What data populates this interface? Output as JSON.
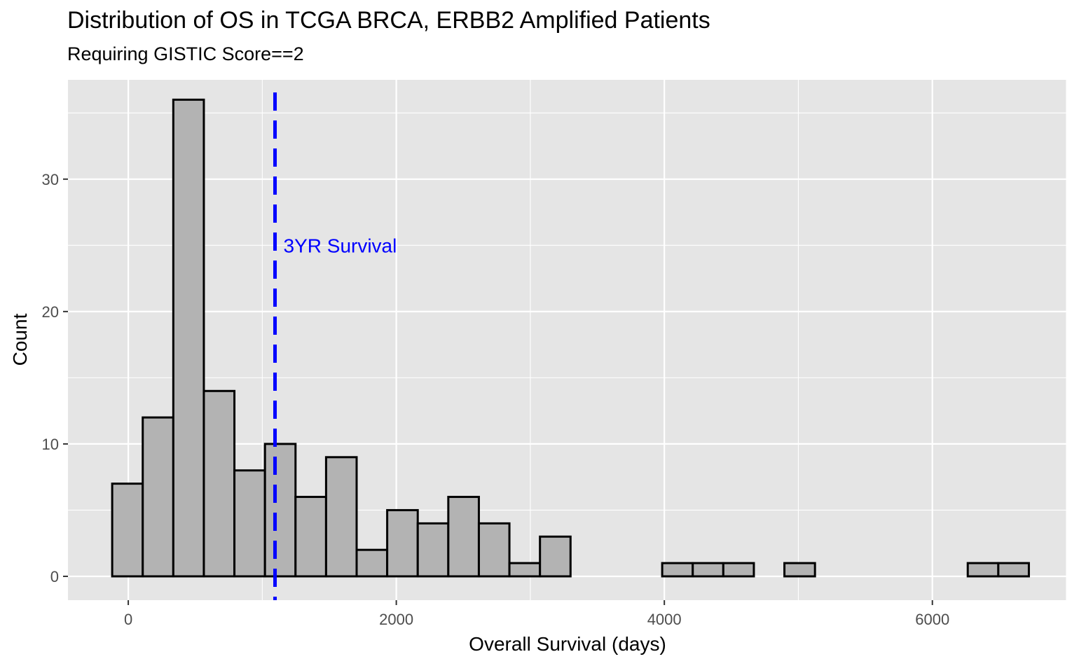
{
  "chart_data": {
    "type": "bar",
    "title": "Distribution of OS in TCGA BRCA, ERBB2 Amplified Patients",
    "subtitle": "Requiring GISTIC Score==2",
    "xlabel": "Overall Survival (days)",
    "ylabel": "Count",
    "xlim": [
      -450,
      7000
    ],
    "ylim": [
      -1.8,
      37.5
    ],
    "x_ticks": [
      0,
      2000,
      4000,
      6000
    ],
    "x_tick_labels": [
      "0",
      "2000",
      "4000",
      "6000"
    ],
    "y_ticks": [
      0,
      10,
      20,
      30
    ],
    "y_tick_labels": [
      "0",
      "10",
      "20",
      "30"
    ],
    "grid": true,
    "bin_width": 228,
    "bins": [
      {
        "x": -6,
        "count": 7
      },
      {
        "x": 222,
        "count": 12
      },
      {
        "x": 450,
        "count": 36
      },
      {
        "x": 678,
        "count": 14
      },
      {
        "x": 906,
        "count": 8
      },
      {
        "x": 1134,
        "count": 10
      },
      {
        "x": 1362,
        "count": 6
      },
      {
        "x": 1590,
        "count": 9
      },
      {
        "x": 1818,
        "count": 2
      },
      {
        "x": 2046,
        "count": 5
      },
      {
        "x": 2274,
        "count": 4
      },
      {
        "x": 2502,
        "count": 6
      },
      {
        "x": 2730,
        "count": 4
      },
      {
        "x": 2958,
        "count": 1
      },
      {
        "x": 3186,
        "count": 3
      },
      {
        "x": 3414,
        "count": 0
      },
      {
        "x": 3642,
        "count": 0
      },
      {
        "x": 3870,
        "count": 0
      },
      {
        "x": 4098,
        "count": 1
      },
      {
        "x": 4326,
        "count": 1
      },
      {
        "x": 4554,
        "count": 1
      },
      {
        "x": 4782,
        "count": 0
      },
      {
        "x": 5010,
        "count": 1
      },
      {
        "x": 5238,
        "count": 0
      },
      {
        "x": 5466,
        "count": 0
      },
      {
        "x": 5694,
        "count": 0
      },
      {
        "x": 5922,
        "count": 0
      },
      {
        "x": 6150,
        "count": 0
      },
      {
        "x": 6378,
        "count": 1
      },
      {
        "x": 6606,
        "count": 1
      }
    ],
    "reference_line": {
      "x": 1095,
      "label": "3YR Survival",
      "label_y": 25,
      "color": "#0000ff",
      "style": "dashed"
    },
    "colors": {
      "bar_fill": "#b3b3b3",
      "bar_stroke": "#000000",
      "panel_bg": "#e5e5e5",
      "grid": "#ffffff"
    }
  }
}
